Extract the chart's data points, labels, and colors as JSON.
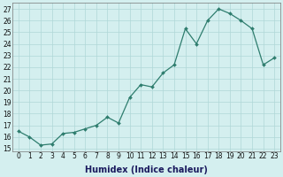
{
  "x": [
    0,
    1,
    2,
    3,
    4,
    5,
    6,
    7,
    8,
    9,
    10,
    11,
    12,
    13,
    14,
    15,
    16,
    17,
    18,
    19,
    20,
    21,
    22,
    23
  ],
  "y": [
    16.5,
    16.0,
    15.3,
    15.4,
    16.3,
    16.4,
    16.7,
    17.0,
    17.7,
    17.2,
    19.4,
    20.5,
    20.3,
    21.5,
    22.2,
    25.3,
    24.0,
    26.0,
    27.0,
    26.6,
    26.0,
    25.3,
    22.2,
    22.8
  ],
  "xlabel": "Humidex (Indice chaleur)",
  "xlim": [
    -0.5,
    23.5
  ],
  "ylim": [
    14.8,
    27.5
  ],
  "yticks": [
    15,
    16,
    17,
    18,
    19,
    20,
    21,
    22,
    23,
    24,
    25,
    26,
    27
  ],
  "xticks": [
    0,
    1,
    2,
    3,
    4,
    5,
    6,
    7,
    8,
    9,
    10,
    11,
    12,
    13,
    14,
    15,
    16,
    17,
    18,
    19,
    20,
    21,
    22,
    23
  ],
  "line_color": "#2e7d6e",
  "marker": "D",
  "marker_size": 2.0,
  "bg_color": "#d4efef",
  "grid_color": "#afd8d8",
  "tick_label_fontsize": 5.5,
  "xlabel_fontsize": 7,
  "linewidth": 0.9
}
